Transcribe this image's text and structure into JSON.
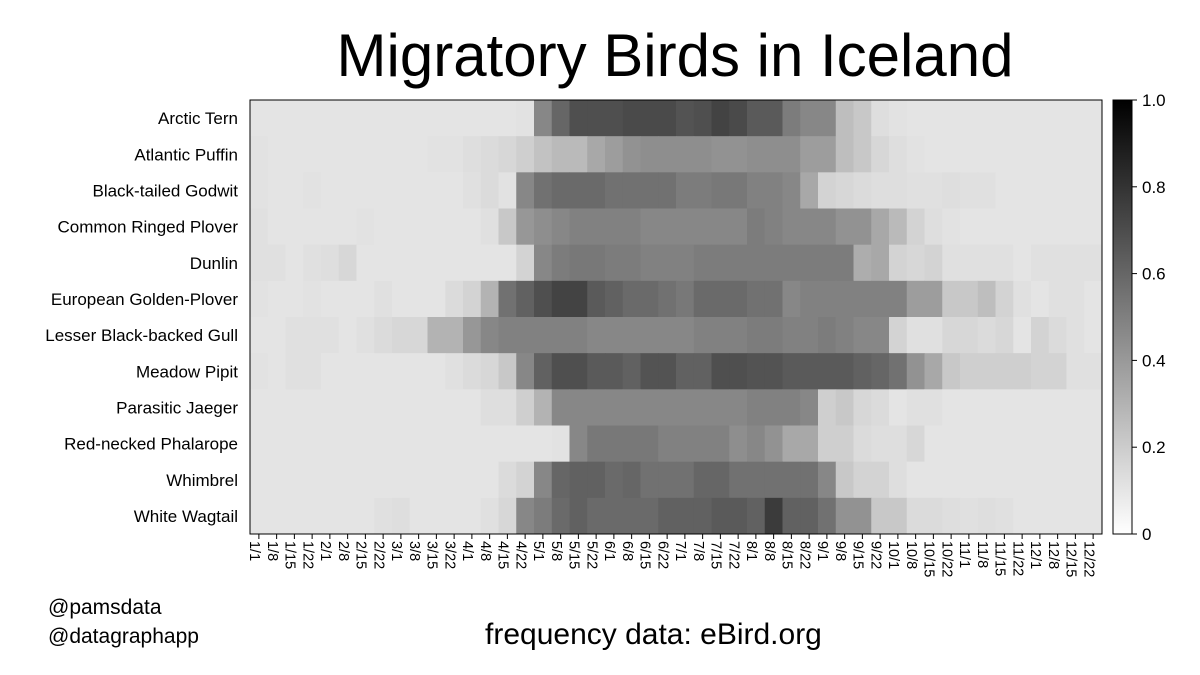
{
  "chart_data": {
    "type": "heatmap",
    "title": "Migratory Birds in Iceland",
    "xlabel": "",
    "ylabel": "",
    "x": [
      "1/1",
      "1/8",
      "1/15",
      "1/22",
      "2/1",
      "2/8",
      "2/15",
      "2/22",
      "3/1",
      "3/8",
      "3/15",
      "3/22",
      "4/1",
      "4/8",
      "4/15",
      "4/22",
      "5/1",
      "5/8",
      "5/15",
      "5/22",
      "6/1",
      "6/8",
      "6/15",
      "6/22",
      "7/1",
      "7/8",
      "7/15",
      "7/22",
      "8/1",
      "8/8",
      "8/15",
      "8/22",
      "9/1",
      "9/8",
      "9/15",
      "9/22",
      "10/1",
      "10/8",
      "10/15",
      "10/22",
      "11/1",
      "11/8",
      "11/15",
      "11/22",
      "12/1",
      "12/8",
      "12/15",
      "12/22"
    ],
    "y": [
      "Arctic Tern",
      "Atlantic Puffin",
      "Black-tailed Godwit",
      "Common Ringed Plover",
      "Dunlin",
      "European Golden-Plover",
      "Lesser Black-backed Gull",
      "Meadow Pipit",
      "Parasitic Jaeger",
      "Red-necked Phalarope",
      "Whimbrel",
      "White Wagtail"
    ],
    "values": [
      [
        0.02,
        0.02,
        0.02,
        0.02,
        0.02,
        0.02,
        0.02,
        0.02,
        0.02,
        0.02,
        0.02,
        0.02,
        0.02,
        0.02,
        0.02,
        0.03,
        0.45,
        0.6,
        0.7,
        0.7,
        0.7,
        0.72,
        0.72,
        0.72,
        0.68,
        0.7,
        0.75,
        0.72,
        0.65,
        0.65,
        0.5,
        0.45,
        0.45,
        0.2,
        0.15,
        0.05,
        0.03,
        0.02,
        0.02,
        0.02,
        0.02,
        0.02,
        0.02,
        0.02,
        0.02,
        0.02,
        0.02,
        0.02
      ],
      [
        0.03,
        0.02,
        0.02,
        0.02,
        0.02,
        0.02,
        0.02,
        0.02,
        0.02,
        0.02,
        0.03,
        0.03,
        0.05,
        0.06,
        0.08,
        0.12,
        0.18,
        0.22,
        0.22,
        0.3,
        0.35,
        0.4,
        0.42,
        0.42,
        0.42,
        0.42,
        0.4,
        0.4,
        0.42,
        0.42,
        0.42,
        0.35,
        0.35,
        0.2,
        0.15,
        0.08,
        0.05,
        0.03,
        0.02,
        0.02,
        0.02,
        0.02,
        0.02,
        0.02,
        0.02,
        0.02,
        0.02,
        0.02
      ],
      [
        0.03,
        0.02,
        0.02,
        0.03,
        0.02,
        0.02,
        0.02,
        0.02,
        0.02,
        0.02,
        0.02,
        0.02,
        0.04,
        0.06,
        0.03,
        0.45,
        0.55,
        0.58,
        0.58,
        0.58,
        0.55,
        0.55,
        0.55,
        0.55,
        0.5,
        0.5,
        0.52,
        0.52,
        0.48,
        0.48,
        0.45,
        0.3,
        0.1,
        0.08,
        0.06,
        0.05,
        0.05,
        0.04,
        0.04,
        0.05,
        0.04,
        0.04,
        0.02,
        0.02,
        0.02,
        0.02,
        0.02,
        0.02
      ],
      [
        0.04,
        0.02,
        0.02,
        0.02,
        0.02,
        0.02,
        0.03,
        0.02,
        0.02,
        0.02,
        0.02,
        0.02,
        0.02,
        0.04,
        0.15,
        0.38,
        0.42,
        0.45,
        0.48,
        0.48,
        0.48,
        0.48,
        0.45,
        0.45,
        0.45,
        0.45,
        0.45,
        0.45,
        0.5,
        0.48,
        0.45,
        0.45,
        0.45,
        0.4,
        0.4,
        0.3,
        0.22,
        0.1,
        0.05,
        0.03,
        0.02,
        0.02,
        0.02,
        0.02,
        0.02,
        0.02,
        0.02,
        0.02
      ],
      [
        0.04,
        0.04,
        0.02,
        0.04,
        0.05,
        0.08,
        0.02,
        0.02,
        0.02,
        0.02,
        0.02,
        0.02,
        0.02,
        0.02,
        0.02,
        0.1,
        0.45,
        0.5,
        0.52,
        0.52,
        0.5,
        0.5,
        0.48,
        0.48,
        0.48,
        0.5,
        0.5,
        0.5,
        0.5,
        0.5,
        0.5,
        0.5,
        0.5,
        0.5,
        0.28,
        0.3,
        0.1,
        0.08,
        0.1,
        0.04,
        0.04,
        0.04,
        0.04,
        0.02,
        0.04,
        0.04,
        0.04,
        0.04
      ],
      [
        0.03,
        0.02,
        0.02,
        0.03,
        0.02,
        0.02,
        0.02,
        0.04,
        0.02,
        0.02,
        0.02,
        0.06,
        0.1,
        0.25,
        0.55,
        0.62,
        0.7,
        0.75,
        0.75,
        0.65,
        0.62,
        0.58,
        0.58,
        0.55,
        0.52,
        0.58,
        0.58,
        0.58,
        0.55,
        0.55,
        0.45,
        0.48,
        0.48,
        0.48,
        0.48,
        0.48,
        0.48,
        0.35,
        0.35,
        0.15,
        0.15,
        0.2,
        0.1,
        0.04,
        0.02,
        0.04,
        0.04,
        0.02
      ],
      [
        0.02,
        0.02,
        0.04,
        0.04,
        0.04,
        0.02,
        0.04,
        0.06,
        0.08,
        0.08,
        0.25,
        0.25,
        0.38,
        0.45,
        0.48,
        0.48,
        0.48,
        0.48,
        0.48,
        0.45,
        0.45,
        0.45,
        0.45,
        0.45,
        0.45,
        0.48,
        0.48,
        0.48,
        0.5,
        0.5,
        0.48,
        0.48,
        0.5,
        0.48,
        0.45,
        0.45,
        0.1,
        0.04,
        0.04,
        0.08,
        0.08,
        0.06,
        0.08,
        0.02,
        0.1,
        0.06,
        0.04,
        0.02
      ],
      [
        0.03,
        0.02,
        0.04,
        0.04,
        0.02,
        0.02,
        0.02,
        0.02,
        0.02,
        0.02,
        0.02,
        0.04,
        0.06,
        0.08,
        0.15,
        0.45,
        0.62,
        0.7,
        0.7,
        0.65,
        0.65,
        0.62,
        0.68,
        0.68,
        0.62,
        0.62,
        0.7,
        0.7,
        0.68,
        0.68,
        0.65,
        0.65,
        0.65,
        0.65,
        0.62,
        0.6,
        0.55,
        0.4,
        0.3,
        0.15,
        0.12,
        0.12,
        0.12,
        0.12,
        0.1,
        0.1,
        0.04,
        0.04
      ],
      [
        0.02,
        0.02,
        0.02,
        0.02,
        0.02,
        0.02,
        0.02,
        0.02,
        0.02,
        0.02,
        0.02,
        0.02,
        0.02,
        0.05,
        0.05,
        0.12,
        0.25,
        0.45,
        0.45,
        0.45,
        0.45,
        0.45,
        0.45,
        0.45,
        0.45,
        0.45,
        0.45,
        0.45,
        0.48,
        0.48,
        0.48,
        0.45,
        0.12,
        0.15,
        0.08,
        0.06,
        0.02,
        0.04,
        0.04,
        0.02,
        0.02,
        0.02,
        0.02,
        0.02,
        0.02,
        0.02,
        0.02,
        0.02
      ],
      [
        0.02,
        0.02,
        0.02,
        0.02,
        0.02,
        0.02,
        0.02,
        0.02,
        0.02,
        0.02,
        0.02,
        0.02,
        0.02,
        0.02,
        0.02,
        0.02,
        0.02,
        0.03,
        0.45,
        0.52,
        0.52,
        0.52,
        0.52,
        0.48,
        0.48,
        0.48,
        0.48,
        0.42,
        0.45,
        0.4,
        0.3,
        0.3,
        0.12,
        0.12,
        0.06,
        0.05,
        0.05,
        0.08,
        0.02,
        0.02,
        0.02,
        0.02,
        0.02,
        0.02,
        0.02,
        0.02,
        0.02,
        0.02
      ],
      [
        0.02,
        0.02,
        0.02,
        0.02,
        0.02,
        0.02,
        0.02,
        0.02,
        0.02,
        0.02,
        0.02,
        0.02,
        0.02,
        0.02,
        0.06,
        0.1,
        0.45,
        0.6,
        0.62,
        0.62,
        0.58,
        0.6,
        0.55,
        0.55,
        0.55,
        0.6,
        0.6,
        0.55,
        0.55,
        0.55,
        0.55,
        0.55,
        0.45,
        0.15,
        0.1,
        0.1,
        0.05,
        0.02,
        0.02,
        0.02,
        0.02,
        0.02,
        0.02,
        0.02,
        0.02,
        0.02,
        0.02,
        0.02
      ],
      [
        0.02,
        0.02,
        0.02,
        0.02,
        0.02,
        0.02,
        0.02,
        0.04,
        0.05,
        0.02,
        0.02,
        0.02,
        0.02,
        0.04,
        0.08,
        0.45,
        0.5,
        0.58,
        0.62,
        0.58,
        0.58,
        0.58,
        0.58,
        0.62,
        0.62,
        0.62,
        0.65,
        0.65,
        0.62,
        0.78,
        0.62,
        0.62,
        0.55,
        0.4,
        0.4,
        0.15,
        0.15,
        0.06,
        0.06,
        0.05,
        0.04,
        0.05,
        0.04,
        0.02,
        0.02,
        0.02,
        0.02,
        0.02
      ]
    ],
    "colorbar": {
      "range": [
        0,
        1
      ],
      "ticks": [
        "0",
        "0.2",
        "0.4",
        "0.6",
        "0.8",
        "1.0"
      ],
      "colors": [
        "#ffffff",
        "#000000"
      ]
    },
    "grid": false
  },
  "credits": [
    "@pamsdata",
    "@datagraphapp"
  ],
  "source_note": "frequency data: eBird.org"
}
